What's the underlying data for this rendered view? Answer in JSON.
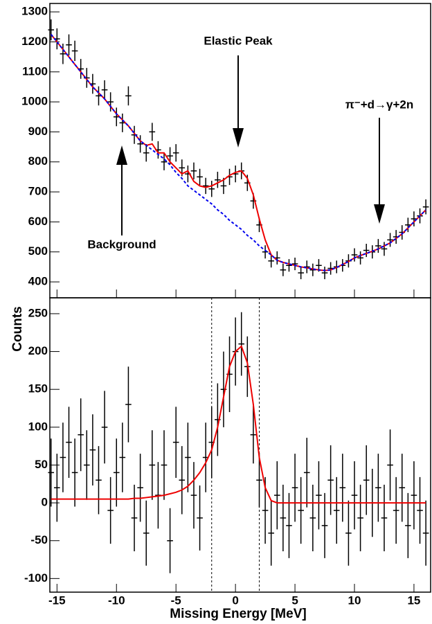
{
  "chart_data": [
    {
      "type": "errorbar",
      "annotations": [
        "Elastic Peak",
        "Background",
        "π⁻+d→γ+2n"
      ],
      "x": [
        -15.5,
        -15,
        -14.5,
        -14,
        -13.5,
        -13,
        -12.5,
        -12,
        -11.5,
        -11,
        -10.5,
        -10,
        -9.5,
        -9,
        -8.5,
        -8,
        -7.5,
        -7,
        -6.5,
        -6,
        -5.5,
        -5,
        -4.5,
        -4,
        -3.5,
        -3,
        -2.5,
        -2,
        -1.5,
        -1,
        -0.5,
        0,
        0.5,
        1,
        1.5,
        2,
        2.5,
        3,
        3.5,
        4,
        4.5,
        5,
        5.5,
        6,
        6.5,
        7,
        7.5,
        8,
        8.5,
        9,
        9.5,
        10,
        10.5,
        11,
        11.5,
        12,
        12.5,
        13,
        13.5,
        14,
        14.5,
        15,
        15.5,
        16
      ],
      "xlim": [
        -15.6,
        16.4
      ],
      "ylim": [
        347,
        1328
      ],
      "yticks": [
        400,
        500,
        600,
        700,
        800,
        900,
        1000,
        1100,
        1200,
        1300
      ],
      "series": [
        {
          "kind": "points",
          "color": "#000000",
          "values": [
            1240,
            1210,
            1160,
            1190,
            1170,
            1110,
            1080,
            1060,
            1020,
            1040,
            1000,
            950,
            930,
            1020,
            890,
            860,
            830,
            900,
            840,
            800,
            820,
            830,
            780,
            760,
            770,
            750,
            720,
            710,
            740,
            720,
            750,
            760,
            770,
            730,
            670,
            590,
            500,
            470,
            480,
            440,
            455,
            460,
            430,
            450,
            440,
            455,
            430,
            445,
            450,
            455,
            470,
            490,
            480,
            505,
            500,
            520,
            510,
            540,
            550,
            565,
            590,
            610,
            620,
            650
          ],
          "errors": [
            35,
            35,
            34,
            35,
            34,
            33,
            33,
            33,
            32,
            32,
            32,
            31,
            31,
            32,
            30,
            29,
            29,
            30,
            29,
            28,
            29,
            29,
            28,
            28,
            28,
            27,
            27,
            27,
            27,
            27,
            27,
            28,
            28,
            27,
            26,
            24,
            22,
            22,
            22,
            21,
            21,
            21,
            21,
            21,
            21,
            21,
            21,
            21,
            21,
            21,
            22,
            22,
            22,
            22,
            22,
            23,
            23,
            23,
            23,
            24,
            24,
            25,
            25,
            25
          ]
        },
        {
          "kind": "line",
          "color": "#ee0000",
          "values": [
            1225,
            1200,
            1175,
            1150,
            1125,
            1100,
            1075,
            1050,
            1030,
            1010,
            985,
            960,
            940,
            920,
            895,
            870,
            855,
            860,
            830,
            830,
            800,
            780,
            760,
            770,
            735,
            720,
            715,
            720,
            730,
            740,
            755,
            765,
            770,
            745,
            690,
            610,
            540,
            490,
            472,
            465,
            460,
            455,
            450,
            447,
            443,
            440,
            438,
            440,
            448,
            458,
            468,
            480,
            488,
            495,
            502,
            510,
            520,
            530,
            545,
            560,
            580,
            600,
            620,
            640
          ]
        },
        {
          "kind": "dashed",
          "color": "#0000ee",
          "values": [
            1225,
            1200,
            1175,
            1150,
            1125,
            1100,
            1075,
            1050,
            1030,
            1010,
            985,
            960,
            940,
            920,
            895,
            870,
            855,
            840,
            825,
            810,
            790,
            765,
            745,
            720,
            705,
            690,
            675,
            660,
            640,
            625,
            605,
            590,
            575,
            555,
            540,
            520,
            505,
            490,
            472,
            465,
            460,
            455,
            450,
            447,
            443,
            440,
            438,
            440,
            448,
            458,
            468,
            480,
            488,
            495,
            502,
            510,
            520,
            530,
            545,
            560,
            580,
            600,
            620,
            640
          ]
        }
      ]
    },
    {
      "type": "errorbar",
      "y_label": "Counts",
      "x_label": "Missing Energy [MeV]",
      "x": [
        -15.5,
        -15,
        -14.5,
        -14,
        -13.5,
        -13,
        -12.5,
        -12,
        -11.5,
        -11,
        -10.5,
        -10,
        -9.5,
        -9,
        -8.5,
        -8,
        -7.5,
        -7,
        -6.5,
        -6,
        -5.5,
        -5,
        -4.5,
        -4,
        -3.5,
        -3,
        -2.5,
        -2,
        -1.5,
        -1,
        -0.5,
        0,
        0.5,
        1,
        1.5,
        2,
        2.5,
        3,
        3.5,
        4,
        4.5,
        5,
        5.5,
        6,
        6.5,
        7,
        7.5,
        8,
        8.5,
        9,
        9.5,
        10,
        10.5,
        11,
        11.5,
        12,
        12.5,
        13,
        13.5,
        14,
        14.5,
        15,
        15.5,
        16
      ],
      "xlim": [
        -15.6,
        16.4
      ],
      "xticks": [
        -15,
        -10,
        -5,
        0,
        5,
        10,
        15
      ],
      "ylim": [
        -118,
        271
      ],
      "yticks": [
        -100,
        -50,
        0,
        50,
        100,
        150,
        200,
        250
      ],
      "vlines": [
        -2,
        2
      ],
      "series": [
        {
          "kind": "points",
          "color": "#000000",
          "values": [
            40,
            20,
            60,
            80,
            40,
            90,
            50,
            70,
            30,
            100,
            -10,
            40,
            60,
            130,
            -20,
            20,
            -40,
            50,
            10,
            50,
            -50,
            80,
            30,
            60,
            10,
            -20,
            60,
            80,
            110,
            150,
            170,
            200,
            210,
            180,
            90,
            30,
            -10,
            -40,
            10,
            -20,
            -30,
            20,
            -10,
            40,
            -20,
            10,
            -30,
            30,
            -10,
            20,
            -40,
            10,
            -20,
            30,
            0,
            20,
            -20,
            50,
            -10,
            20,
            -30,
            10,
            -10,
            -40
          ],
          "errors": [
            45,
            45,
            46,
            47,
            45,
            48,
            46,
            47,
            45,
            48,
            44,
            45,
            46,
            50,
            44,
            45,
            43,
            46,
            44,
            46,
            43,
            47,
            45,
            46,
            44,
            43,
            46,
            47,
            48,
            50,
            50,
            45,
            42,
            40,
            38,
            36,
            44,
            43,
            45,
            44,
            43,
            45,
            44,
            46,
            44,
            45,
            43,
            46,
            44,
            45,
            43,
            45,
            44,
            46,
            45,
            45,
            44,
            47,
            44,
            45,
            43,
            45,
            44,
            43
          ]
        },
        {
          "kind": "line",
          "color": "#ee0000",
          "values": [
            5,
            5,
            5,
            5,
            5,
            5,
            5,
            5,
            5,
            5,
            5,
            5,
            5,
            5,
            6,
            6,
            7,
            8,
            9,
            10,
            12,
            14,
            17,
            22,
            30,
            40,
            53,
            70,
            100,
            140,
            180,
            200,
            207,
            185,
            130,
            60,
            20,
            3,
            0,
            0,
            0,
            0,
            0,
            0,
            0,
            0,
            0,
            0,
            0,
            0,
            0,
            0,
            0,
            0,
            0,
            0,
            0,
            0,
            0,
            0,
            0,
            0,
            0,
            0
          ]
        }
      ]
    }
  ]
}
